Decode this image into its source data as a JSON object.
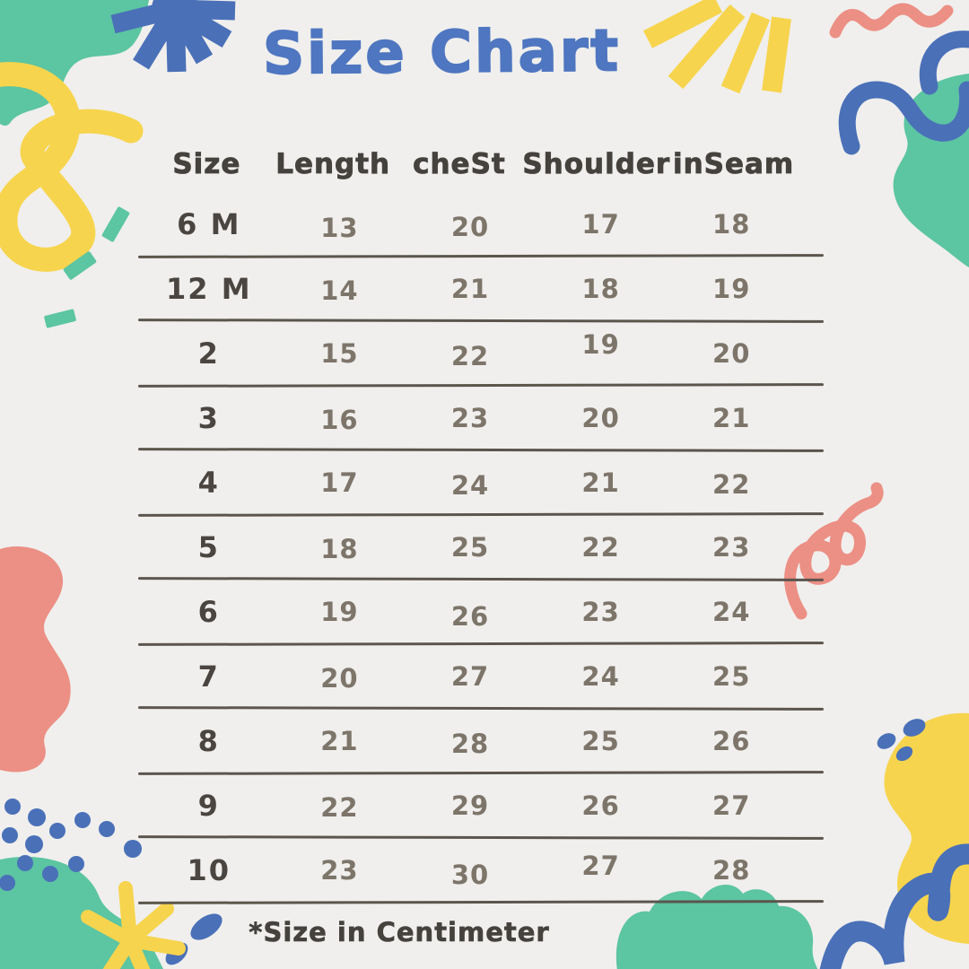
{
  "page": {
    "title": "Size Chart",
    "footer_note": "*Size in Centimeter"
  },
  "chart_data": {
    "type": "table",
    "title": "Size Chart",
    "columns": [
      "Size",
      "Length",
      "cheSt",
      "Shoulder",
      "inSeam"
    ],
    "rows": [
      [
        "6 M",
        "13",
        "20",
        "17",
        "18"
      ],
      [
        "12 M",
        "14",
        "21",
        "18",
        "19"
      ],
      [
        "2",
        "15",
        "22",
        "19",
        "20"
      ],
      [
        "3",
        "16",
        "23",
        "20",
        "21"
      ],
      [
        "4",
        "17",
        "24",
        "21",
        "22"
      ],
      [
        "5",
        "18",
        "25",
        "22",
        "23"
      ],
      [
        "6",
        "19",
        "26",
        "23",
        "24"
      ],
      [
        "7",
        "20",
        "27",
        "24",
        "25"
      ],
      [
        "8",
        "21",
        "28",
        "25",
        "26"
      ],
      [
        "9",
        "22",
        "29",
        "26",
        "27"
      ],
      [
        "10",
        "23",
        "30",
        "27",
        "28"
      ]
    ],
    "note": "*Size in Centimeter",
    "grid": "horizontal-lines-only",
    "legend": "none"
  },
  "colors": {
    "background": "#f0efed",
    "title_blue": "#4f76c0",
    "shape_blue": "#4a70b8",
    "teal": "#5cc5a2",
    "yellow": "#f7d44d",
    "coral": "#ec8f84",
    "header_text": "#45423e",
    "size_text": "#4a4540",
    "value_text": "#7d756a",
    "line": "#5b554d"
  },
  "decor": {
    "shapes": [
      "teal-blob-top-left",
      "blue-starburst",
      "yellow-loop-squiggle",
      "teal-confetti-dashes",
      "yellow-sun-rays",
      "coral-wave-squiggle",
      "blue-zigzag-squiggle",
      "teal-blob-right",
      "coral-spring-squiggle",
      "coral-blob-left",
      "blue-dots-cluster",
      "teal-blob-bottom-left",
      "yellow-star-sparkle",
      "teal-cloud-bottom",
      "yellow-blob-bottom-right",
      "blue-coil-squiggle",
      "blue-mini-dots"
    ]
  }
}
